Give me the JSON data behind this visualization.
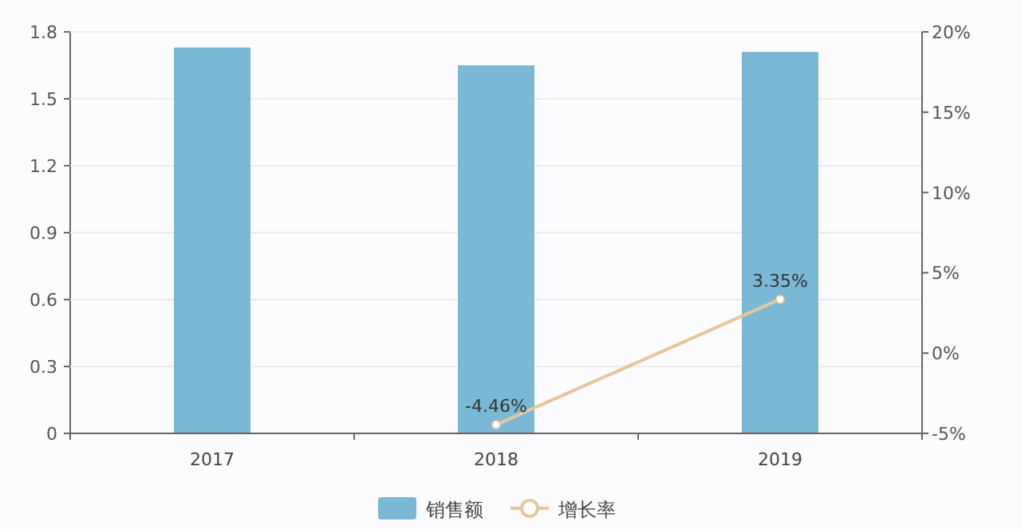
{
  "chart_data": {
    "type": "bar",
    "categories": [
      "2017",
      "2018",
      "2019"
    ],
    "series": [
      {
        "name": "销售额",
        "color": "#7ab8d6",
        "values": [
          1.73,
          1.65,
          1.71
        ]
      },
      {
        "name": "增长率",
        "type": "line",
        "axis": "y2",
        "color": "#e6c79c",
        "marker": "circle",
        "values": [
          null,
          -4.46,
          3.35
        ],
        "value_labels": [
          null,
          "-4.46%",
          "3.35%"
        ]
      }
    ],
    "ylim": [
      0,
      1.8
    ],
    "yticks": [
      0,
      0.3,
      0.6,
      0.9,
      1.2,
      1.5,
      1.8
    ],
    "y2lim": [
      -5,
      20
    ],
    "y2ticks": [
      {
        "value": -5,
        "label": "-5%"
      },
      {
        "value": 0,
        "label": "0%"
      },
      {
        "value": 5,
        "label": "5%"
      },
      {
        "value": 10,
        "label": "10%"
      },
      {
        "value": 15,
        "label": "15%"
      },
      {
        "value": 20,
        "label": "20%"
      }
    ],
    "grid": "y",
    "legend": "bottom"
  }
}
